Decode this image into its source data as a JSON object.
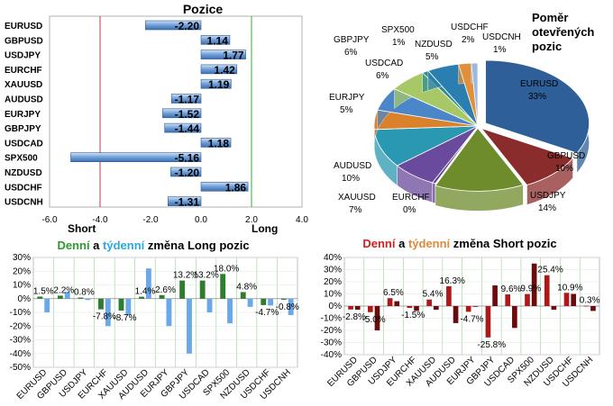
{
  "chart_data": [
    {
      "type": "bar",
      "orientation": "horizontal",
      "title": "Pozice",
      "categories": [
        "EURUSD",
        "GBPUSD",
        "USDJPY",
        "EURCHF",
        "XAUUSD",
        "AUDUSD",
        "EURJPY",
        "GBPJPY",
        "USDCAD",
        "SPX500",
        "NZDUSD",
        "USDCHF",
        "USDCNH"
      ],
      "values": [
        -2.2,
        1.14,
        1.77,
        1.42,
        1.19,
        -1.17,
        -1.52,
        -1.44,
        1.18,
        -5.16,
        -1.2,
        1.86,
        -1.31
      ],
      "value_labels": [
        "-2.20",
        "1.14",
        "1.77",
        "1.42",
        "1.19",
        "-1.17",
        "-1.52",
        "-1.44",
        "1.18",
        "-5.16",
        "-1.20",
        "1.86",
        "-1.31"
      ],
      "xlim": [
        -6,
        4
      ],
      "xticks": [
        "-6.0",
        "-4.0",
        "-2.0",
        "0.0",
        "2.0",
        "4.0"
      ],
      "short_label": "Short",
      "long_label": "Long",
      "short_color": "#cc3344",
      "long_color": "#33aa33"
    },
    {
      "type": "pie",
      "title_lines": [
        "Poměr",
        "otevřených",
        "pozic"
      ],
      "slices": [
        {
          "name": "EURUSD",
          "value": 33,
          "label": "33%",
          "color": "#2e5f98"
        },
        {
          "name": "GBPUSD",
          "value": 10,
          "label": "10%",
          "color": "#8b2c2c"
        },
        {
          "name": "USDJPY",
          "value": 14,
          "label": "14%",
          "color": "#6e8c2c"
        },
        {
          "name": "EURCHF",
          "value": 0,
          "label": "0%",
          "color": "#5e3f8c"
        },
        {
          "name": "XAUUSD",
          "value": 7,
          "label": "7%",
          "color": "#6a4a9c"
        },
        {
          "name": "AUDUSD",
          "value": 10,
          "label": "10%",
          "color": "#2a98b0"
        },
        {
          "name": "EURJPY",
          "value": 5,
          "label": "5%",
          "color": "#d9822b"
        },
        {
          "name": "GBPJPY",
          "value": 6,
          "label": "6%",
          "color": "#4a86c8"
        },
        {
          "name": "USDCAD",
          "value": 6,
          "label": "6%",
          "color": "#a8c868"
        },
        {
          "name": "SPX500",
          "value": 1,
          "label": "1%",
          "color": "#2e8c8c"
        },
        {
          "name": "NZDUSD",
          "value": 5,
          "label": "5%",
          "color": "#2a7fb0"
        },
        {
          "name": "USDCHF",
          "value": 2,
          "label": "2%",
          "color": "#e0903a"
        },
        {
          "name": "USDCNH",
          "value": 1,
          "label": "1%",
          "color": "#9ab8e0"
        }
      ]
    },
    {
      "type": "bar",
      "title_parts": [
        "Denní",
        " a ",
        "týdenní",
        " změna Long pozic"
      ],
      "title_colors": [
        "#2e9a2e",
        "#000000",
        "#2aa8e0",
        "#000000"
      ],
      "categories": [
        "EURUSD",
        "GBPUSD",
        "USDJPY",
        "EURCHF",
        "XAUUSD",
        "AUDUSD",
        "EURJPY",
        "GBPJPY",
        "USDCAD",
        "SPX500",
        "NZDUSD",
        "USDCHF",
        "USDCNH"
      ],
      "series": [
        {
          "name": "Denní",
          "color": "#2e7d2e",
          "values": [
            1.5,
            2.2,
            0.8,
            -7.8,
            -8.7,
            1.4,
            2.6,
            13.2,
            13.2,
            18.0,
            4.8,
            -4.7,
            -0.8
          ]
        },
        {
          "name": "Týdenní",
          "color": "#6aa8e8",
          "values": [
            -10,
            5,
            -1,
            -20,
            -12,
            22,
            -20,
            -40,
            -10,
            -18,
            -6,
            -5,
            -12
          ]
        }
      ],
      "value_labels": [
        "1.5%",
        "2.2%",
        "0.8%",
        "-7.8%",
        "-8.7%",
        "1.4%",
        "2.6%",
        "13.2%",
        "13.2%",
        "18.0%",
        "4.8%",
        "-4.7%",
        "-0.8%"
      ],
      "ylim": [
        -50,
        30
      ],
      "yticks": [
        "30%",
        "20%",
        "10%",
        "0%",
        "-10%",
        "-20%",
        "-30%",
        "-40%",
        "-50%"
      ]
    },
    {
      "type": "bar",
      "title_parts": [
        "Denní",
        " a ",
        "týdenní",
        " změna Short pozic"
      ],
      "title_colors": [
        "#d02020",
        "#000000",
        "#e08a3a",
        "#000000"
      ],
      "categories": [
        "EURUSD",
        "GBPUSD",
        "USDJPY",
        "EURCHF",
        "XAUUSD",
        "AUDUSD",
        "EURJPY",
        "GBPJPY",
        "USDCAD",
        "SPX500",
        "NZDUSD",
        "USDCHF",
        "USDCNH"
      ],
      "series": [
        {
          "name": "Denní",
          "color": "#b01818",
          "values": [
            -2.8,
            -5.0,
            6.5,
            -1.5,
            5.4,
            16.3,
            -4.7,
            -25.8,
            9.6,
            9.9,
            25.4,
            10.9,
            0.3
          ]
        },
        {
          "name": "Týdenní",
          "color": "#6a0c0c",
          "values": [
            -3,
            -20,
            4,
            -4,
            -3,
            -14,
            0,
            17,
            -18,
            35,
            -3,
            10,
            -4
          ]
        }
      ],
      "value_labels": [
        "-2.8%",
        "-5.0%",
        "6.5%",
        "-1.5%",
        "5.4%",
        "16.3%",
        "-4.7%",
        "-25.8%",
        "9.6%",
        "9.9%",
        "25.4%",
        "10.9%",
        "0.3%"
      ],
      "ylim": [
        -40,
        40
      ],
      "yticks": [
        "40%",
        "30%",
        "20%",
        "10%",
        "0%",
        "-10%",
        "-20%",
        "-30%",
        "-40%"
      ]
    }
  ]
}
